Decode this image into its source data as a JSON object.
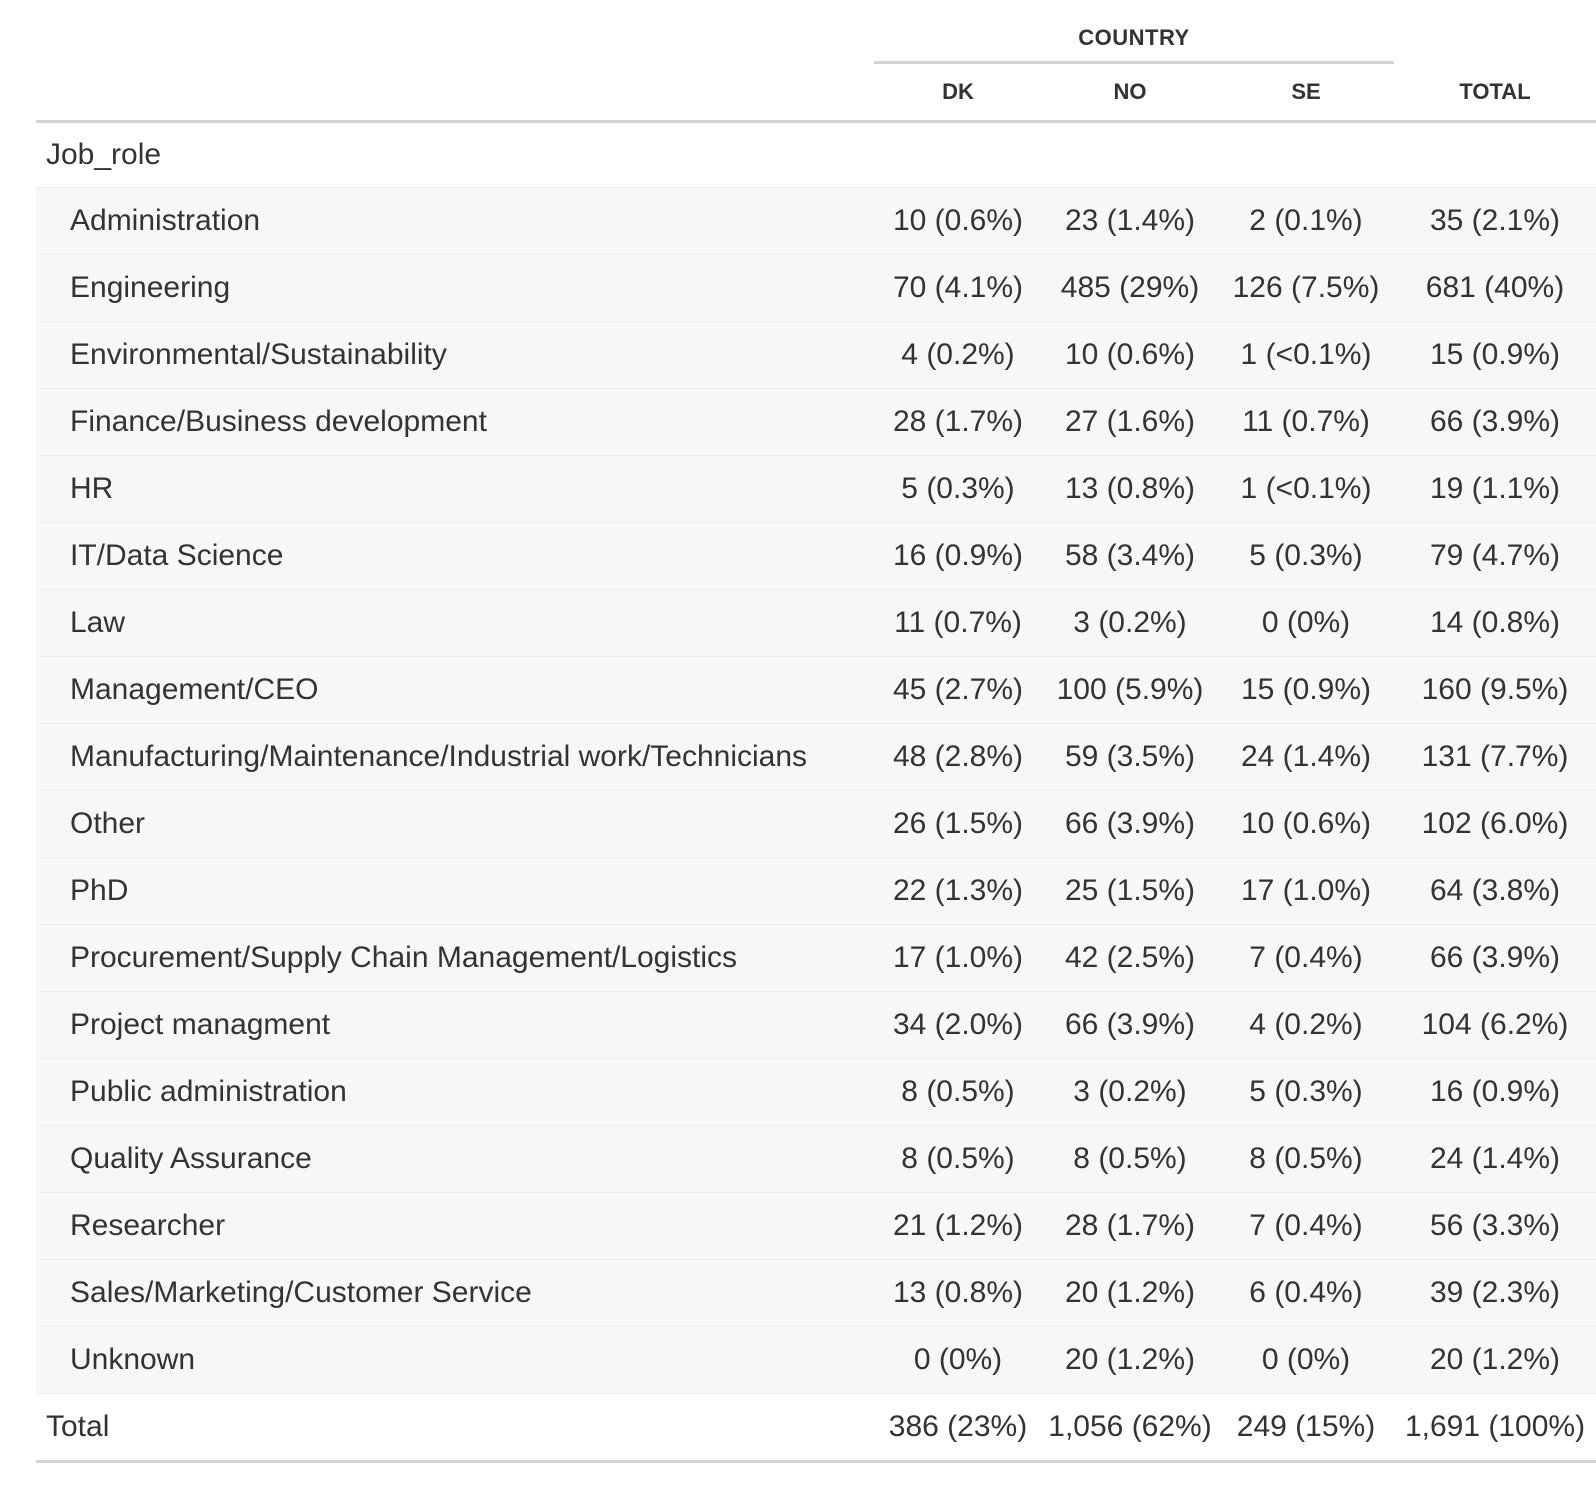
{
  "table": {
    "spanner": "COUNTRY",
    "columns": [
      "DK",
      "NO",
      "SE",
      "TOTAL"
    ],
    "group_label": "Job_role",
    "rows": [
      {
        "label": "Administration",
        "values": [
          "10 (0.6%)",
          "23 (1.4%)",
          "2 (0.1%)",
          "35 (2.1%)"
        ]
      },
      {
        "label": "Engineering",
        "values": [
          "70 (4.1%)",
          "485 (29%)",
          "126 (7.5%)",
          "681 (40%)"
        ]
      },
      {
        "label": "Environmental/Sustainability",
        "values": [
          "4 (0.2%)",
          "10 (0.6%)",
          "1 (<0.1%)",
          "15 (0.9%)"
        ]
      },
      {
        "label": "Finance/Business development",
        "values": [
          "28 (1.7%)",
          "27 (1.6%)",
          "11 (0.7%)",
          "66 (3.9%)"
        ]
      },
      {
        "label": "HR",
        "values": [
          "5 (0.3%)",
          "13 (0.8%)",
          "1 (<0.1%)",
          "19 (1.1%)"
        ]
      },
      {
        "label": "IT/Data Science",
        "values": [
          "16 (0.9%)",
          "58 (3.4%)",
          "5 (0.3%)",
          "79 (4.7%)"
        ]
      },
      {
        "label": "Law",
        "values": [
          "11 (0.7%)",
          "3 (0.2%)",
          "0 (0%)",
          "14 (0.8%)"
        ]
      },
      {
        "label": "Management/CEO",
        "values": [
          "45 (2.7%)",
          "100 (5.9%)",
          "15 (0.9%)",
          "160 (9.5%)"
        ]
      },
      {
        "label": "Manufacturing/Maintenance/Industrial work/Technicians",
        "values": [
          "48 (2.8%)",
          "59 (3.5%)",
          "24 (1.4%)",
          "131 (7.7%)"
        ]
      },
      {
        "label": "Other",
        "values": [
          "26 (1.5%)",
          "66 (3.9%)",
          "10 (0.6%)",
          "102 (6.0%)"
        ]
      },
      {
        "label": "PhD",
        "values": [
          "22 (1.3%)",
          "25 (1.5%)",
          "17 (1.0%)",
          "64 (3.8%)"
        ]
      },
      {
        "label": "Procurement/Supply Chain Management/Logistics",
        "values": [
          "17 (1.0%)",
          "42 (2.5%)",
          "7 (0.4%)",
          "66 (3.9%)"
        ]
      },
      {
        "label": "Project managment",
        "values": [
          "34 (2.0%)",
          "66 (3.9%)",
          "4 (0.2%)",
          "104 (6.2%)"
        ]
      },
      {
        "label": "Public administration",
        "values": [
          "8 (0.5%)",
          "3 (0.2%)",
          "5 (0.3%)",
          "16 (0.9%)"
        ]
      },
      {
        "label": "Quality Assurance",
        "values": [
          "8 (0.5%)",
          "8 (0.5%)",
          "8 (0.5%)",
          "24 (1.4%)"
        ]
      },
      {
        "label": "Researcher",
        "values": [
          "21 (1.2%)",
          "28 (1.7%)",
          "7 (0.4%)",
          "56 (3.3%)"
        ]
      },
      {
        "label": "Sales/Marketing/Customer Service",
        "values": [
          "13 (0.8%)",
          "20 (1.2%)",
          "6 (0.4%)",
          "39 (2.3%)"
        ]
      },
      {
        "label": "Unknown",
        "values": [
          "0 (0%)",
          "20 (1.2%)",
          "0 (0%)",
          "20 (1.2%)"
        ]
      }
    ],
    "total": {
      "label": "Total",
      "values": [
        "386 (23%)",
        "1,056 (62%)",
        "249 (15%)",
        "1,691 (100%)"
      ]
    }
  }
}
